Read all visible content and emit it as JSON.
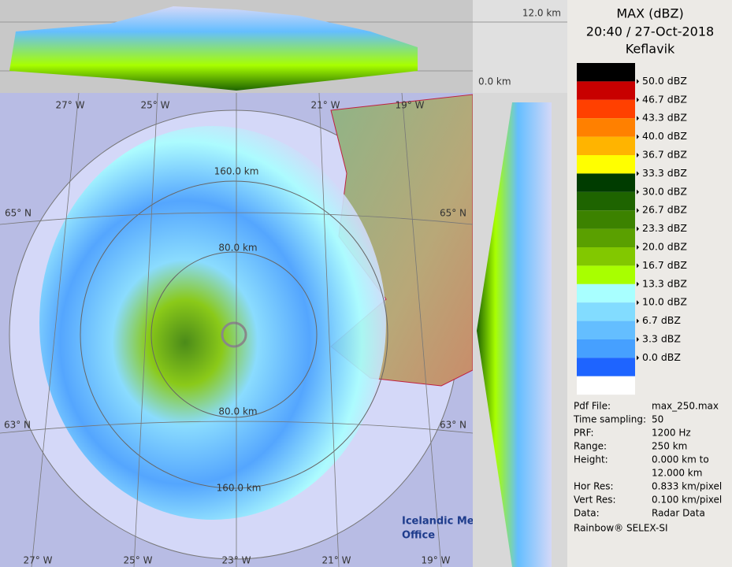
{
  "header": {
    "title": "MAX (dBZ)",
    "datetime": "20:40 / 27-Oct-2018",
    "station": "Keflavik"
  },
  "legend": {
    "colors": [
      "#000000",
      "#c80000",
      "#ff4000",
      "#ff8000",
      "#ffb400",
      "#ffff00",
      "#003c00",
      "#1e6400",
      "#3c8200",
      "#5aa000",
      "#82c800",
      "#a8ff00",
      "#a8ffff",
      "#82dcff",
      "#64beff",
      "#46a0ff",
      "#1e64ff",
      "#ffffff"
    ],
    "labels": [
      "50.0 dBZ",
      "46.7 dBZ",
      "43.3 dBZ",
      "40.0 dBZ",
      "36.7 dBZ",
      "33.3 dBZ",
      "30.0 dBZ",
      "26.7 dBZ",
      "23.3 dBZ",
      "20.0 dBZ",
      "16.7 dBZ",
      "13.3 dBZ",
      "10.0 dBZ",
      "6.7 dBZ",
      "3.3 dBZ",
      "0.0 dBZ"
    ]
  },
  "info": [
    {
      "label": "Pdf File:",
      "value": "max_250.max"
    },
    {
      "label": "Time sampling:",
      "value": "50"
    },
    {
      "label": "PRF:",
      "value": "1200 Hz"
    },
    {
      "label": "Range:",
      "value": "250 km"
    },
    {
      "label": "Height:",
      "value": "0.000 km to"
    },
    {
      "value": "12.000 km"
    },
    {
      "label": "Hor Res:",
      "value": "0.833 km/pixel"
    },
    {
      "label": "Vert Res:",
      "value": "0.100 km/pixel"
    },
    {
      "label": "Data:",
      "value": "Radar Data"
    }
  ],
  "footer": "Rainbow® SELEX-SI",
  "cross_section": {
    "top_height": "12.0 km",
    "bottom_height": "0.0 km"
  },
  "map": {
    "lon_top": [
      "27° W",
      "25° W",
      "21° W",
      "19° W"
    ],
    "lon_bottom": [
      "27° W",
      "25° W",
      "23° W",
      "21° W",
      "19° W"
    ],
    "lat_left": [
      "65° N",
      "63° N"
    ],
    "lat_right": [
      "65° N",
      "63° N"
    ],
    "range_labels": [
      "160.0 km",
      "80.0 km",
      "80.0 km",
      "160.0 km"
    ],
    "logo": [
      "Icelandic Met",
      "Office"
    ]
  }
}
